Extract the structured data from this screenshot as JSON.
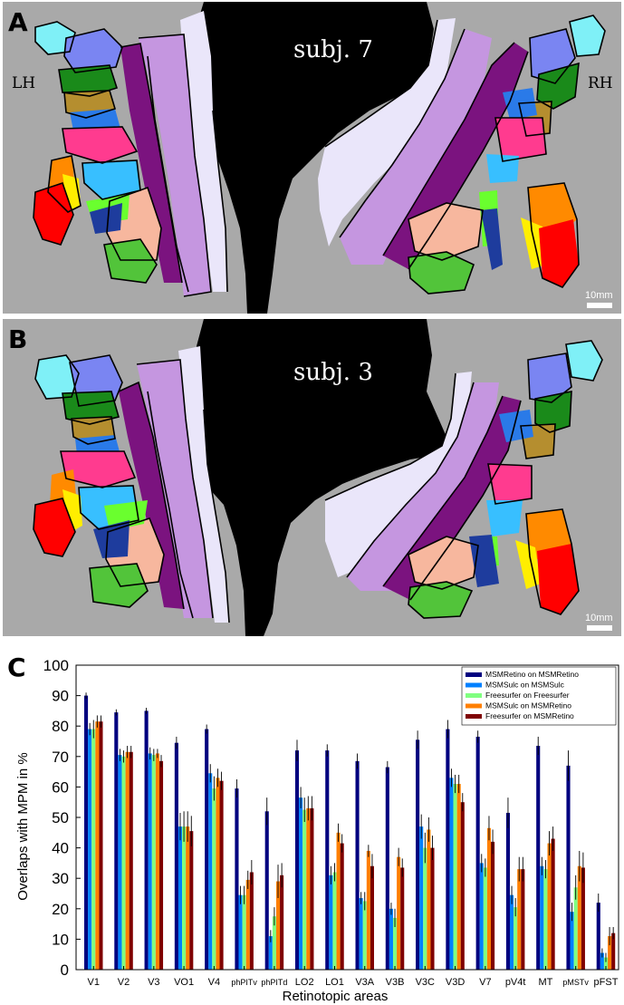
{
  "panels": [
    {
      "letter": "A",
      "subject": "subj. 7",
      "left_label": "LH",
      "right_label": "RH",
      "scale_label": "10mm"
    },
    {
      "letter": "B",
      "subject": "subj. 3",
      "scale_label": "10mm"
    }
  ],
  "area_colors": {
    "background": "#a9a9a9",
    "medial_wall": "#000000",
    "V1": "#eae6fa",
    "V2": "#c596e0",
    "V3": "#7b137f",
    "V4": "#f7b79e",
    "LO": "#1e3c9d",
    "MT": "#ff0000",
    "TO2": "#ff8a00",
    "hV4": "#52c43a",
    "V3A": "#2a7ae8",
    "IPS0": "#ff3b8f",
    "IPS1": "#b58e2f",
    "IPS2": "#1a8a1a",
    "IPS3": "#7a85f2",
    "IPS4": "#7ff0f7",
    "FEF": "#ffee00",
    "V3B": "#38bfff",
    "LO2": "#6aff2e"
  },
  "chart_data": {
    "type": "bar",
    "panel_letter": "C",
    "xlabel": "Retinotopic areas",
    "ylabel": "Overlaps with MPM in %",
    "ylim": [
      0,
      100
    ],
    "yticks": [
      0,
      10,
      20,
      30,
      40,
      50,
      60,
      70,
      80,
      90,
      100
    ],
    "grid": false,
    "legend_position": "top-right",
    "categories": [
      "V1",
      "V2",
      "V3",
      "VO1",
      "V4",
      "phPITv",
      "phPITd",
      "LO2",
      "LO1",
      "V3A",
      "V3B",
      "V3C",
      "V3D",
      "V7",
      "pV4t",
      "MT",
      "pMSTv",
      "pFST"
    ],
    "series": [
      {
        "name": "MSMRetino on MSMRetino",
        "color": "#00007f",
        "values": [
          90,
          84.5,
          85,
          74.5,
          79,
          59.5,
          52,
          72,
          72,
          68.5,
          66.5,
          75.5,
          79,
          76.5,
          51.5,
          73.5,
          67,
          22
        ],
        "errors": [
          1,
          1,
          1,
          2,
          1.5,
          3,
          4.5,
          3.5,
          2,
          2.5,
          2,
          3,
          3,
          2,
          5,
          3,
          5,
          3
        ]
      },
      {
        "name": "MSMSulc on MSMSulc",
        "color": "#0080ff",
        "values": [
          79,
          70.5,
          71,
          47,
          64.5,
          24.5,
          11,
          56.5,
          31,
          23.5,
          20,
          47,
          63,
          35,
          24.5,
          34,
          19,
          5.5
        ],
        "errors": [
          2,
          2,
          2,
          4.5,
          3,
          3,
          2,
          3.5,
          3,
          2,
          2,
          4,
          3,
          3,
          3,
          3,
          3,
          1.5
        ]
      },
      {
        "name": "Freesurfer on Freesurfer",
        "color": "#80ff80",
        "values": [
          79,
          70,
          70.5,
          47,
          59.5,
          24.5,
          17.5,
          52.5,
          32,
          22.5,
          17,
          40,
          61,
          33.5,
          20.5,
          33,
          27,
          4
        ],
        "errors": [
          3,
          2,
          2,
          5,
          4,
          3,
          3,
          4,
          3,
          3,
          3,
          5,
          3,
          3,
          3,
          3,
          4,
          1.5
        ]
      },
      {
        "name": "MSMSulc on MSMRetino",
        "color": "#ff7f00",
        "values": [
          81.5,
          71.5,
          71,
          47,
          63,
          29.5,
          29,
          53,
          45,
          39,
          37,
          46,
          61,
          46.5,
          33,
          41.5,
          34,
          11
        ],
        "errors": [
          2,
          2,
          1.5,
          5,
          3,
          3,
          5.5,
          4,
          3,
          2,
          3,
          4,
          3,
          4,
          4,
          4,
          5,
          3
        ]
      },
      {
        "name": "Freesurfer on MSMRetino",
        "color": "#7f0000",
        "values": [
          81.5,
          71.5,
          68.5,
          45.5,
          62,
          32,
          31,
          53,
          41.5,
          34,
          33.5,
          40,
          55,
          42,
          33,
          43,
          33.5,
          12
        ],
        "errors": [
          2,
          2,
          2,
          5,
          3,
          4,
          4,
          4,
          3,
          4,
          3,
          4,
          3,
          4,
          4,
          4,
          5,
          2
        ]
      }
    ]
  }
}
